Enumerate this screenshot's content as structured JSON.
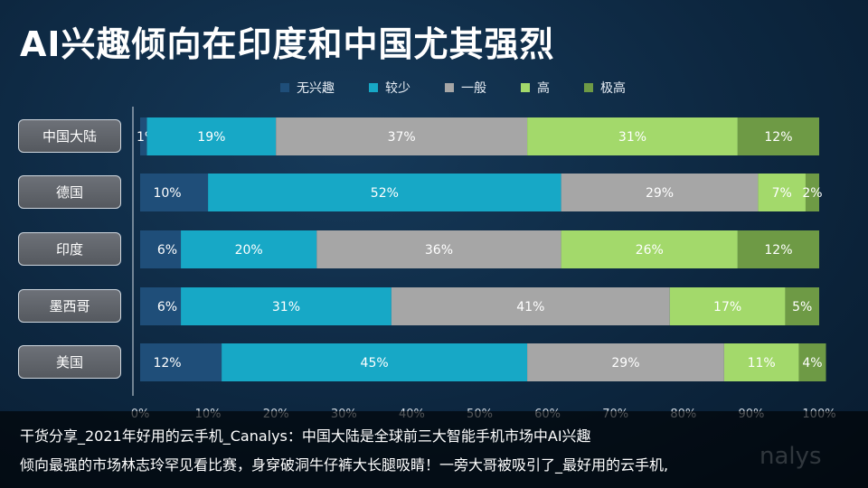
{
  "title": "AI兴趣倾向在印度和中国尤其强烈",
  "colors": {
    "无兴趣": "#1f4e79",
    "较少": "#17a8c6",
    "一般": "#a6a6a6",
    "高": "#a3d96b",
    "极高": "#6e9a45"
  },
  "caption": {
    "line1": "干货分享_2021年好用的云手机_Canalys：中国大陆是全球前三大智能手机市场中AI兴趣",
    "line2": "倾向最强的市场林志玲罕见看比赛，身穿破洞牛仔裤大长腿吸睛！一旁大哥被吸引了_最好用的云手机,"
  },
  "watermark": "nalys",
  "chart_data": {
    "type": "bar",
    "orientation": "horizontal",
    "stacked": true,
    "categories": [
      "中国大陆",
      "德国",
      "印度",
      "墨西哥",
      "美国"
    ],
    "series": [
      {
        "name": "无兴趣",
        "values": [
          1,
          10,
          6,
          6,
          12
        ]
      },
      {
        "name": "较少",
        "values": [
          19,
          52,
          20,
          31,
          45
        ]
      },
      {
        "name": "一般",
        "values": [
          37,
          29,
          36,
          41,
          29
        ]
      },
      {
        "name": "高",
        "values": [
          31,
          7,
          26,
          17,
          11
        ]
      },
      {
        "name": "极高",
        "values": [
          12,
          2,
          12,
          5,
          4
        ]
      }
    ],
    "xlim": [
      0,
      100
    ],
    "x_ticks": [
      "0%",
      "10%",
      "20%",
      "30%",
      "40%",
      "50%",
      "60%",
      "70%",
      "80%",
      "90%",
      "100%"
    ],
    "legend": "top"
  }
}
